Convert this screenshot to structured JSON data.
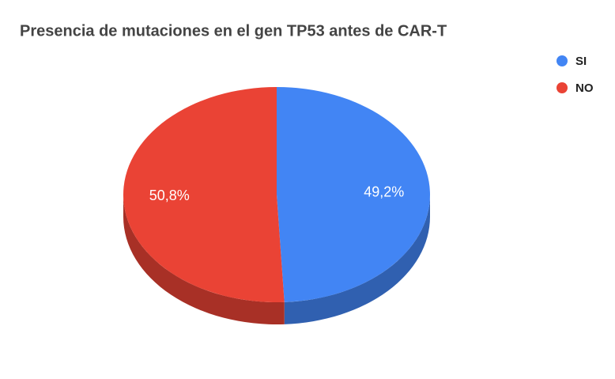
{
  "chart_data": {
    "type": "pie3d",
    "title": "Presencia de mutaciones en el gen TP53 antes de CAR-T",
    "categories": [
      "SI",
      "NO"
    ],
    "values": [
      49.2,
      50.8
    ],
    "value_labels": [
      "49,2%",
      "50,8%"
    ],
    "colors": [
      "#4285f4",
      "#ea4335"
    ],
    "legend": "top-right"
  }
}
